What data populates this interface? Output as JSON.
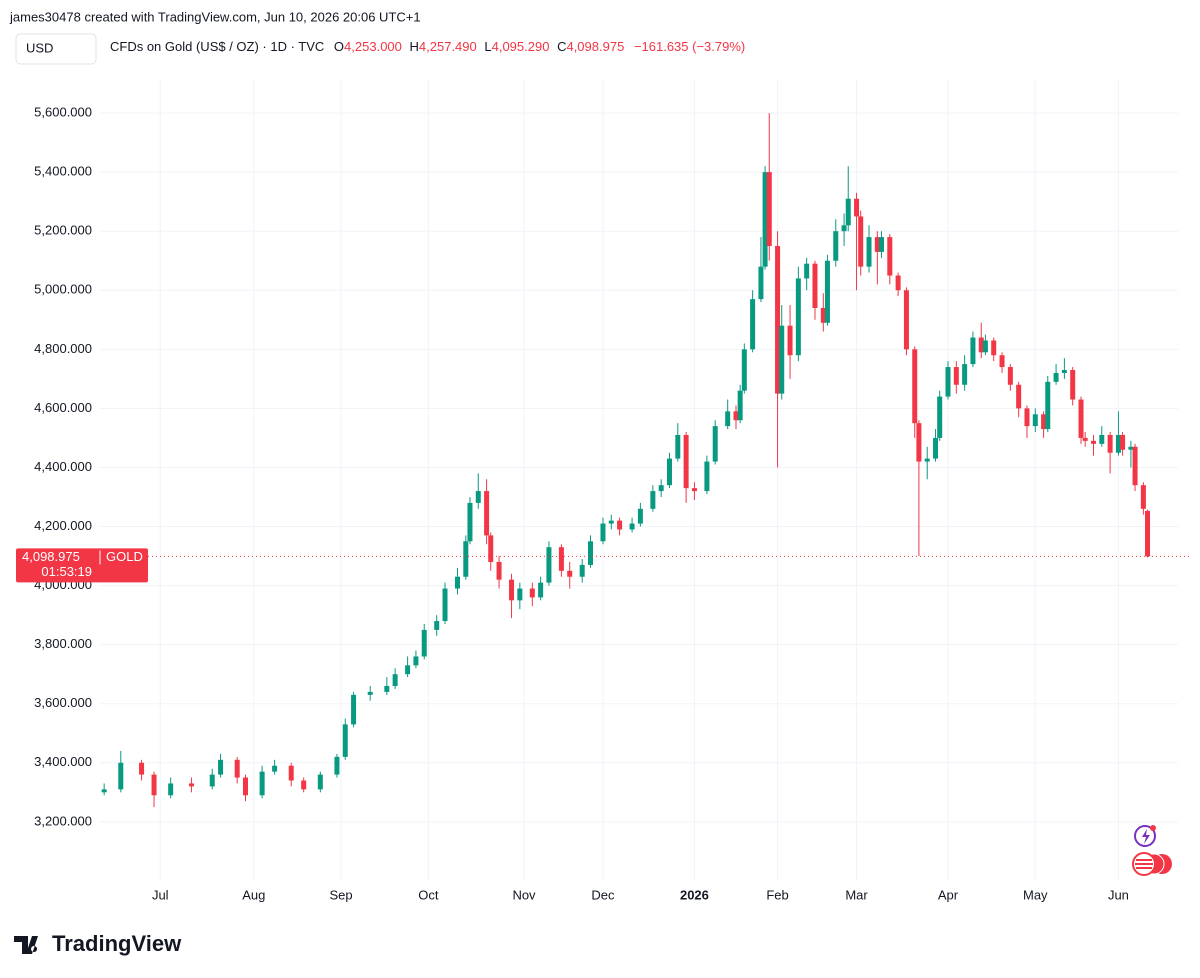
{
  "chart_data": {
    "type": "candlestick",
    "credit": "james30478 created with TradingView.com, Jun 10, 2026 20:06 UTC+1",
    "currency": "USD",
    "title": "CFDs on Gold (US$ / OZ) · 1D · TVC",
    "ohlc_header": {
      "open_prefix": "O",
      "open": "4,253.000",
      "high_prefix": "H",
      "high": "4,257.490",
      "low_prefix": "L",
      "low": "4,095.290",
      "close_prefix": "C",
      "close": "4,098.975",
      "change": "−161.635 (−3.79%)"
    },
    "price_tag": {
      "price": "4,098.975",
      "symbol": "GOLD",
      "countdown": "01:53:19"
    },
    "brand": "TradingView",
    "up_color": "#089981",
    "down_color": "#f23645",
    "grid": true,
    "xlim": [
      -1,
      254
    ],
    "ylim": [
      3020,
      5712
    ],
    "yticks": [
      {
        "value": 3200,
        "label": "3,200.000"
      },
      {
        "value": 3400,
        "label": "3,400.000"
      },
      {
        "value": 3600,
        "label": "3,600.000"
      },
      {
        "value": 3800,
        "label": "3,800.000"
      },
      {
        "value": 4000,
        "label": "4,000.000"
      },
      {
        "value": 4200,
        "label": "4,200.000"
      },
      {
        "value": 4400,
        "label": "4,400.000"
      },
      {
        "value": 4600,
        "label": "4,600.000"
      },
      {
        "value": 4800,
        "label": "4,800.000"
      },
      {
        "value": 5000,
        "label": "5,000.000"
      },
      {
        "value": 5200,
        "label": "5,200.000"
      },
      {
        "value": 5400,
        "label": "5,400.000"
      },
      {
        "value": 5600,
        "label": "5,600.000"
      }
    ],
    "xticks": [
      {
        "value": 13.5,
        "label": "Jul"
      },
      {
        "value": 36,
        "label": "Aug"
      },
      {
        "value": 57,
        "label": "Sep"
      },
      {
        "value": 78,
        "label": "Oct"
      },
      {
        "value": 101,
        "label": "Nov"
      },
      {
        "value": 120,
        "label": "Dec"
      },
      {
        "value": 142,
        "label": "2026"
      },
      {
        "value": 162,
        "label": "Feb"
      },
      {
        "value": 181,
        "label": "Mar"
      },
      {
        "value": 203,
        "label": "Apr"
      },
      {
        "value": 224,
        "label": "May"
      },
      {
        "value": 244,
        "label": "Jun"
      }
    ],
    "x": [
      0,
      4,
      9,
      12,
      16,
      21,
      26,
      28,
      32,
      34,
      38,
      41,
      45,
      48,
      52,
      56,
      58,
      60,
      64,
      68,
      70,
      73,
      75,
      77,
      80,
      82,
      85,
      87,
      88,
      90,
      92,
      93,
      95,
      98,
      100,
      103,
      105,
      107,
      110,
      112,
      115,
      117,
      120,
      122,
      124,
      127,
      129,
      132,
      134,
      136,
      138,
      140,
      142,
      145,
      147,
      150,
      152,
      153,
      154,
      156,
      158,
      159,
      160,
      162,
      163,
      165,
      167,
      169,
      171,
      173,
      174,
      176,
      178,
      179,
      181,
      182,
      184,
      186,
      187,
      189,
      191,
      193,
      195,
      196,
      198,
      200,
      201,
      203,
      205,
      207,
      209,
      211,
      212,
      214,
      216,
      218,
      220,
      222,
      224,
      226,
      227,
      229,
      231,
      233,
      235,
      236,
      238,
      240,
      242,
      244,
      245,
      247,
      248,
      250,
      251
    ],
    "open": [
      3300,
      3310,
      3400,
      3360,
      3290,
      3330,
      3320,
      3360,
      3410,
      3350,
      3290,
      3370,
      3390,
      3340,
      3310,
      3360,
      3420,
      3530,
      3630,
      3640,
      3660,
      3700,
      3730,
      3760,
      3850,
      3880,
      3990,
      4030,
      4150,
      4280,
      4320,
      4170,
      4080,
      4020,
      3950,
      3990,
      3960,
      4010,
      4130,
      4050,
      4030,
      4070,
      4150,
      4210,
      4220,
      4190,
      4210,
      4260,
      4320,
      4340,
      4430,
      4510,
      4330,
      4320,
      4420,
      4540,
      4590,
      4560,
      4660,
      4800,
      4970,
      5080,
      5400,
      5150,
      4650,
      4880,
      4780,
      5040,
      5090,
      4940,
      4890,
      5100,
      5200,
      5220,
      5310,
      5250,
      5080,
      5180,
      5130,
      5180,
      5050,
      5000,
      4800,
      4550,
      4420,
      4430,
      4500,
      4640,
      4740,
      4680,
      4750,
      4840,
      4790,
      4830,
      4780,
      4740,
      4680,
      4600,
      4540,
      4580,
      4530,
      4690,
      4720,
      4730,
      4630,
      4500,
      4490,
      4480,
      4510,
      4450,
      4510,
      4460,
      4470,
      4340,
      4253
    ],
    "high": [
      3330,
      3440,
      3410,
      3370,
      3350,
      3350,
      3380,
      3430,
      3420,
      3360,
      3390,
      3410,
      3400,
      3350,
      3370,
      3430,
      3550,
      3640,
      3660,
      3690,
      3720,
      3760,
      3780,
      3870,
      3900,
      4010,
      4060,
      4170,
      4300,
      4380,
      4360,
      4180,
      4100,
      4040,
      4010,
      4010,
      4030,
      4150,
      4140,
      4080,
      4090,
      4170,
      4230,
      4240,
      4230,
      4230,
      4280,
      4340,
      4360,
      4450,
      4550,
      4520,
      4350,
      4440,
      4560,
      4630,
      4610,
      4680,
      4820,
      5000,
      5180,
      5420,
      5600,
      5200,
      4950,
      4950,
      5080,
      5110,
      5100,
      4990,
      5120,
      5240,
      5260,
      5420,
      5330,
      5270,
      5220,
      5200,
      5200,
      5190,
      5060,
      5010,
      4810,
      4560,
      4470,
      4530,
      4660,
      4760,
      4760,
      4780,
      4860,
      4890,
      4850,
      4840,
      4790,
      4750,
      4690,
      4610,
      4600,
      4590,
      4710,
      4750,
      4770,
      4740,
      4640,
      4520,
      4510,
      4540,
      4520,
      4590,
      4520,
      4490,
      4480,
      4350,
      4257.49
    ],
    "low": [
      3290,
      3300,
      3340,
      3250,
      3280,
      3300,
      3310,
      3350,
      3330,
      3270,
      3280,
      3360,
      3320,
      3300,
      3300,
      3350,
      3410,
      3520,
      3610,
      3630,
      3650,
      3690,
      3720,
      3750,
      3830,
      3870,
      3970,
      4020,
      4140,
      4260,
      4140,
      4050,
      3990,
      3890,
      3920,
      3930,
      3950,
      4000,
      4030,
      3990,
      4010,
      4060,
      4140,
      4190,
      4170,
      4180,
      4200,
      4250,
      4300,
      4330,
      4420,
      4280,
      4290,
      4310,
      4410,
      4530,
      4530,
      4550,
      4650,
      4790,
      4960,
      5070,
      5100,
      4400,
      4630,
      4700,
      4760,
      5000,
      4900,
      4860,
      4880,
      5080,
      5150,
      5200,
      5000,
      5050,
      5060,
      5020,
      5110,
      5020,
      4980,
      4780,
      4500,
      4100,
      4360,
      4420,
      4490,
      4630,
      4650,
      4660,
      4740,
      4770,
      4780,
      4760,
      4720,
      4660,
      4570,
      4500,
      4520,
      4500,
      4520,
      4680,
      4700,
      4610,
      4480,
      4470,
      4440,
      4470,
      4380,
      4440,
      4440,
      4400,
      4320,
      4240,
      4095.29
    ],
    "close": [
      3310,
      3400,
      3360,
      3290,
      3330,
      3320,
      3360,
      3410,
      3350,
      3290,
      3370,
      3390,
      3340,
      3310,
      3360,
      3420,
      3530,
      3630,
      3640,
      3660,
      3700,
      3730,
      3760,
      3850,
      3880,
      3990,
      4030,
      4150,
      4280,
      4320,
      4170,
      4080,
      4020,
      3950,
      3990,
      3960,
      4010,
      4130,
      4050,
      4030,
      4070,
      4150,
      4210,
      4220,
      4190,
      4210,
      4260,
      4320,
      4340,
      4430,
      4510,
      4330,
      4320,
      4420,
      4540,
      4590,
      4560,
      4660,
      4800,
      4970,
      5080,
      5400,
      5150,
      4650,
      4880,
      4780,
      5040,
      5090,
      4940,
      4890,
      5100,
      5200,
      5220,
      5310,
      5250,
      5080,
      5180,
      5130,
      5180,
      5050,
      5000,
      4800,
      4550,
      4420,
      4430,
      4500,
      4640,
      4740,
      4680,
      4750,
      4840,
      4790,
      4830,
      4780,
      4740,
      4680,
      4600,
      4540,
      4580,
      4530,
      4690,
      4720,
      4730,
      4630,
      4500,
      4490,
      4480,
      4510,
      4450,
      4510,
      4460,
      4470,
      4340,
      4260,
      4098.975
    ]
  }
}
